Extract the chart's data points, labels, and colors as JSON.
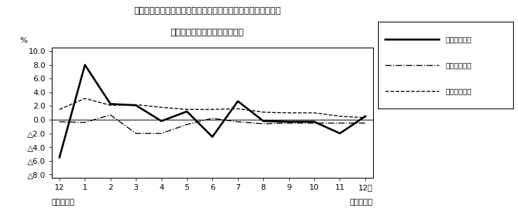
{
  "title_line1": "第４図　賃金、労働時間、常用雇用指数　対前年同月比の推移",
  "title_line2": "（規模５人以上　調査産業計）",
  "xlabel_left": "平成２２年",
  "xlabel_right": "平成２３年",
  "ylabel": "%",
  "xtick_labels": [
    "12",
    "1",
    "2",
    "3",
    "4",
    "5",
    "6",
    "7",
    "8",
    "9",
    "10",
    "11",
    "12月"
  ],
  "ylim": [
    -8.5,
    10.5
  ],
  "legend_labels": [
    "現金給与総額",
    "総実労働時間",
    "常用雇用指数"
  ],
  "series_genkin": [
    -5.5,
    8.0,
    2.3,
    2.1,
    -0.2,
    1.2,
    -2.5,
    2.7,
    -0.2,
    -0.3,
    -0.3,
    -2.0,
    0.5
  ],
  "series_sojitsu": [
    -0.3,
    -0.4,
    0.7,
    -2.0,
    -2.0,
    -0.7,
    0.2,
    -0.3,
    -0.6,
    -0.5,
    -0.5,
    -0.5,
    -0.5
  ],
  "series_joyo": [
    1.5,
    3.1,
    2.1,
    2.2,
    1.8,
    1.5,
    1.5,
    1.6,
    1.1,
    1.0,
    1.0,
    0.5,
    0.3
  ],
  "background": "#ffffff",
  "line_color": "#000000"
}
